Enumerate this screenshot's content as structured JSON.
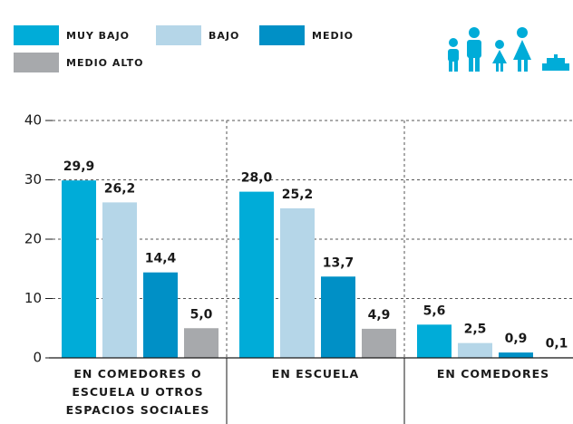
{
  "chart_data": {
    "type": "bar",
    "categories": [
      "EN COMEDORES O ESCUELA U OTROS ESPACIOS SOCIALES",
      "EN ESCUELA",
      "EN COMEDORES"
    ],
    "series": [
      {
        "name": "MUY BAJO",
        "color": "#00acd8",
        "values": [
          29.9,
          28.0,
          5.6
        ],
        "value_labels": [
          "29,9",
          "28,0",
          "5,6"
        ]
      },
      {
        "name": "BAJO",
        "color": "#b5d6e8",
        "values": [
          26.2,
          25.2,
          2.5
        ],
        "value_labels": [
          "26,2",
          "25,2",
          "2,5"
        ]
      },
      {
        "name": "MEDIO",
        "color": "#0090c6",
        "values": [
          14.4,
          13.7,
          0.9
        ],
        "value_labels": [
          "14,4",
          "13,7",
          "0,9"
        ]
      },
      {
        "name": "MEDIO ALTO",
        "color": "#a7a9ac",
        "values": [
          5.0,
          4.9,
          0.1
        ],
        "value_labels": [
          "5,0",
          "4,9",
          "0,1"
        ]
      }
    ],
    "ylim": [
      0,
      40
    ],
    "yticks": [
      0,
      10,
      20,
      30,
      40
    ],
    "grid": true
  }
}
